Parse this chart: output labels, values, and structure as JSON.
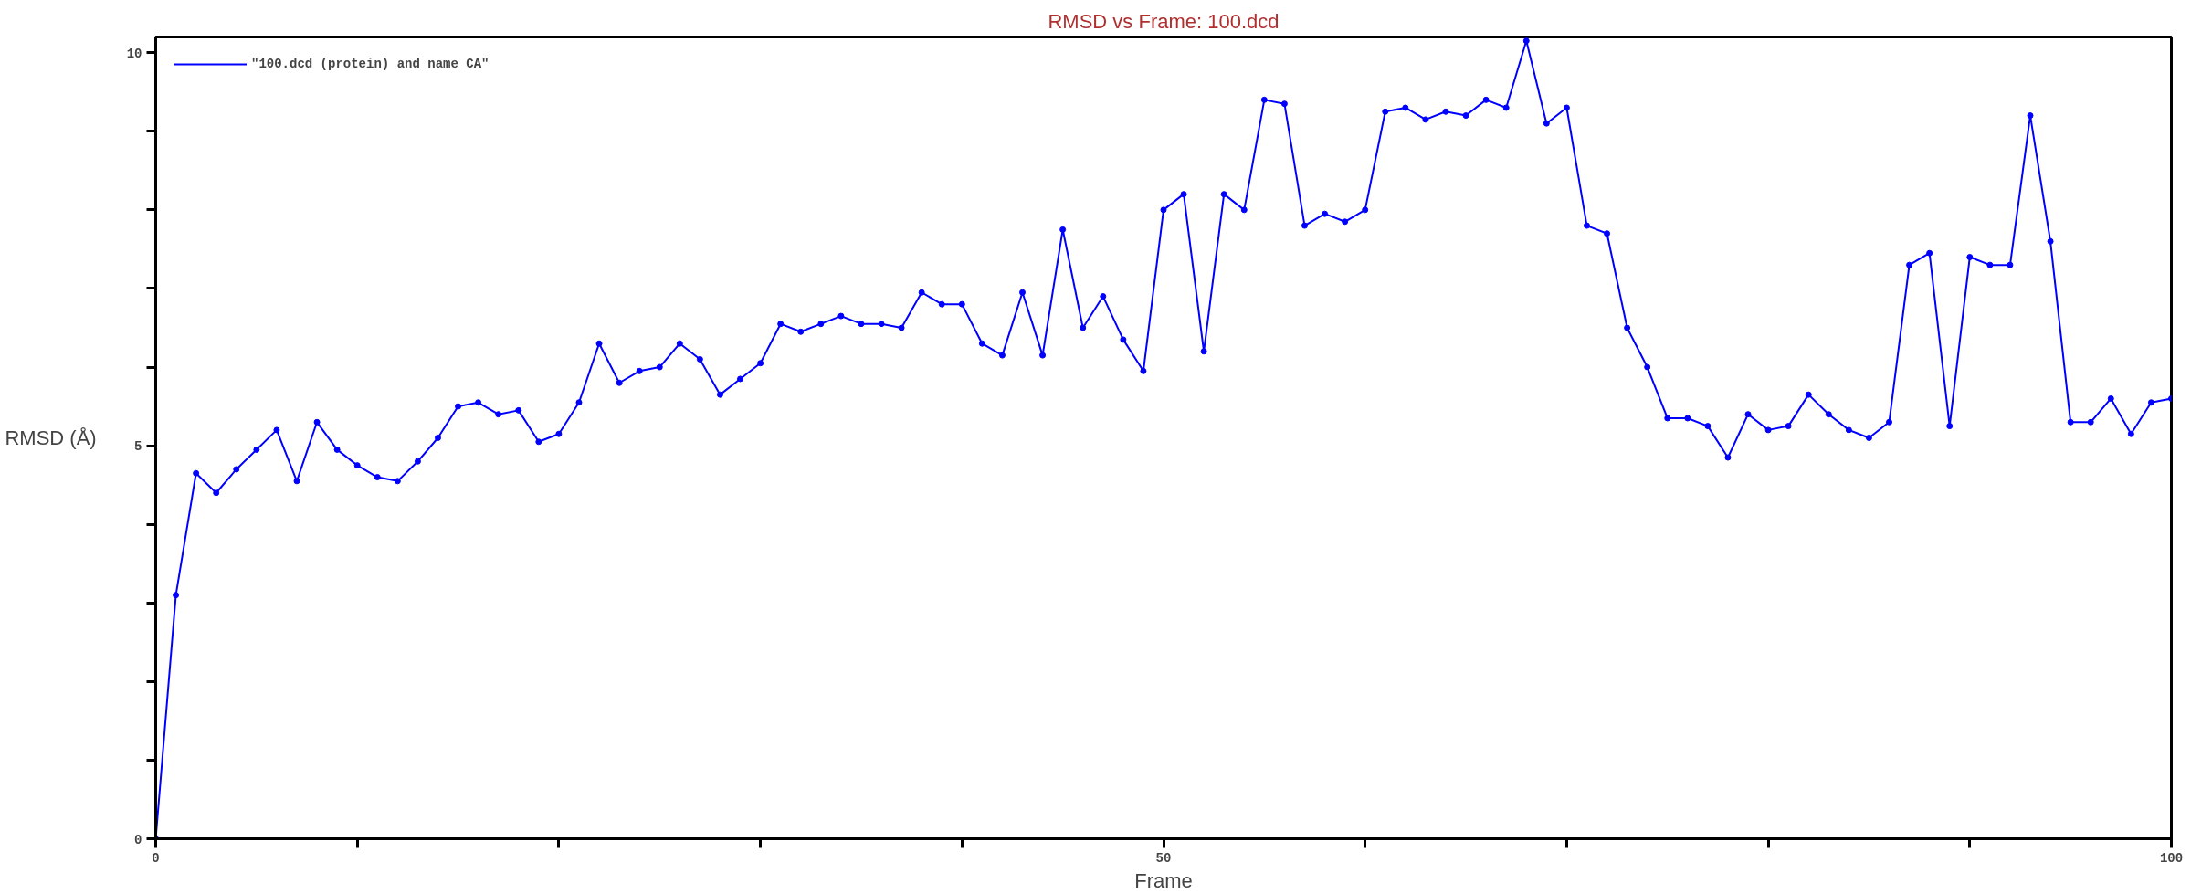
{
  "chart_data": {
    "type": "line",
    "title": "RMSD vs Frame: 100.dcd",
    "xlabel": "Frame",
    "ylabel": "RMSD (Å)",
    "x": [
      0,
      1,
      2,
      3,
      4,
      5,
      6,
      7,
      8,
      9,
      10,
      11,
      12,
      13,
      14,
      15,
      16,
      17,
      18,
      19,
      20,
      21,
      22,
      23,
      24,
      25,
      26,
      27,
      28,
      29,
      30,
      31,
      32,
      33,
      34,
      35,
      36,
      37,
      38,
      39,
      40,
      41,
      42,
      43,
      44,
      45,
      46,
      47,
      48,
      49,
      50,
      51,
      52,
      53,
      54,
      55,
      56,
      57,
      58,
      59,
      60,
      61,
      62,
      63,
      64,
      65,
      66,
      67,
      68,
      69,
      70,
      71,
      72,
      73,
      74,
      75,
      76,
      77,
      78,
      79,
      80,
      81,
      82,
      83,
      84,
      85,
      86,
      87,
      88,
      89,
      90,
      91,
      92,
      93,
      94,
      95,
      96,
      97,
      98,
      99,
      100
    ],
    "series": [
      {
        "name": "\"100.dcd (protein) and name CA\"",
        "color": "#0000ff",
        "values": [
          0,
          3.1,
          4.65,
          4.4,
          4.7,
          4.95,
          5.2,
          4.55,
          5.3,
          4.95,
          4.75,
          4.6,
          4.55,
          4.8,
          5.1,
          5.5,
          5.55,
          5.4,
          5.45,
          5.05,
          5.15,
          5.55,
          6.3,
          5.8,
          5.95,
          6.0,
          6.3,
          6.1,
          5.65,
          5.85,
          6.05,
          6.55,
          6.45,
          6.55,
          6.65,
          6.55,
          6.55,
          6.5,
          6.95,
          6.8,
          6.8,
          6.3,
          6.15,
          6.95,
          6.15,
          7.75,
          6.5,
          6.9,
          6.35,
          5.95,
          8.0,
          8.2,
          6.2,
          8.2,
          8.0,
          9.4,
          9.35,
          7.8,
          7.95,
          7.85,
          8.0,
          9.25,
          9.3,
          9.15,
          9.25,
          9.2,
          9.4,
          9.3,
          10.15,
          9.1,
          9.3,
          7.8,
          7.7,
          6.5,
          6.0,
          5.35,
          5.35,
          5.25,
          4.85,
          5.4,
          5.2,
          5.25,
          5.65,
          5.4,
          5.2,
          5.1,
          5.3,
          7.3,
          7.45,
          5.25,
          7.4,
          7.3,
          7.3,
          9.2,
          7.6,
          5.3,
          5.3,
          5.6,
          5.15,
          5.55,
          5.6
        ]
      }
    ],
    "xlim": [
      0,
      100
    ],
    "ylim": [
      0,
      10.2
    ],
    "xticks": [
      0,
      {
        "value": 10,
        "label": null
      },
      {
        "value": 20,
        "label": null
      },
      {
        "value": 30,
        "label": null
      },
      {
        "value": 40,
        "label": null
      },
      50,
      {
        "value": 60,
        "label": null
      },
      {
        "value": 70,
        "label": null
      },
      {
        "value": 80,
        "label": null
      },
      {
        "value": 90,
        "label": null
      },
      100
    ],
    "yticks": [
      0,
      {
        "value": 1,
        "label": null
      },
      {
        "value": 2,
        "label": null
      },
      {
        "value": 3,
        "label": null
      },
      {
        "value": 4,
        "label": null
      },
      5,
      {
        "value": 6,
        "label": null
      },
      {
        "value": 7,
        "label": null
      },
      {
        "value": 8,
        "label": null
      },
      {
        "value": 9,
        "label": null
      },
      10
    ],
    "grid": false,
    "legend": "top left",
    "marker": "circle",
    "line_style": "solid"
  }
}
